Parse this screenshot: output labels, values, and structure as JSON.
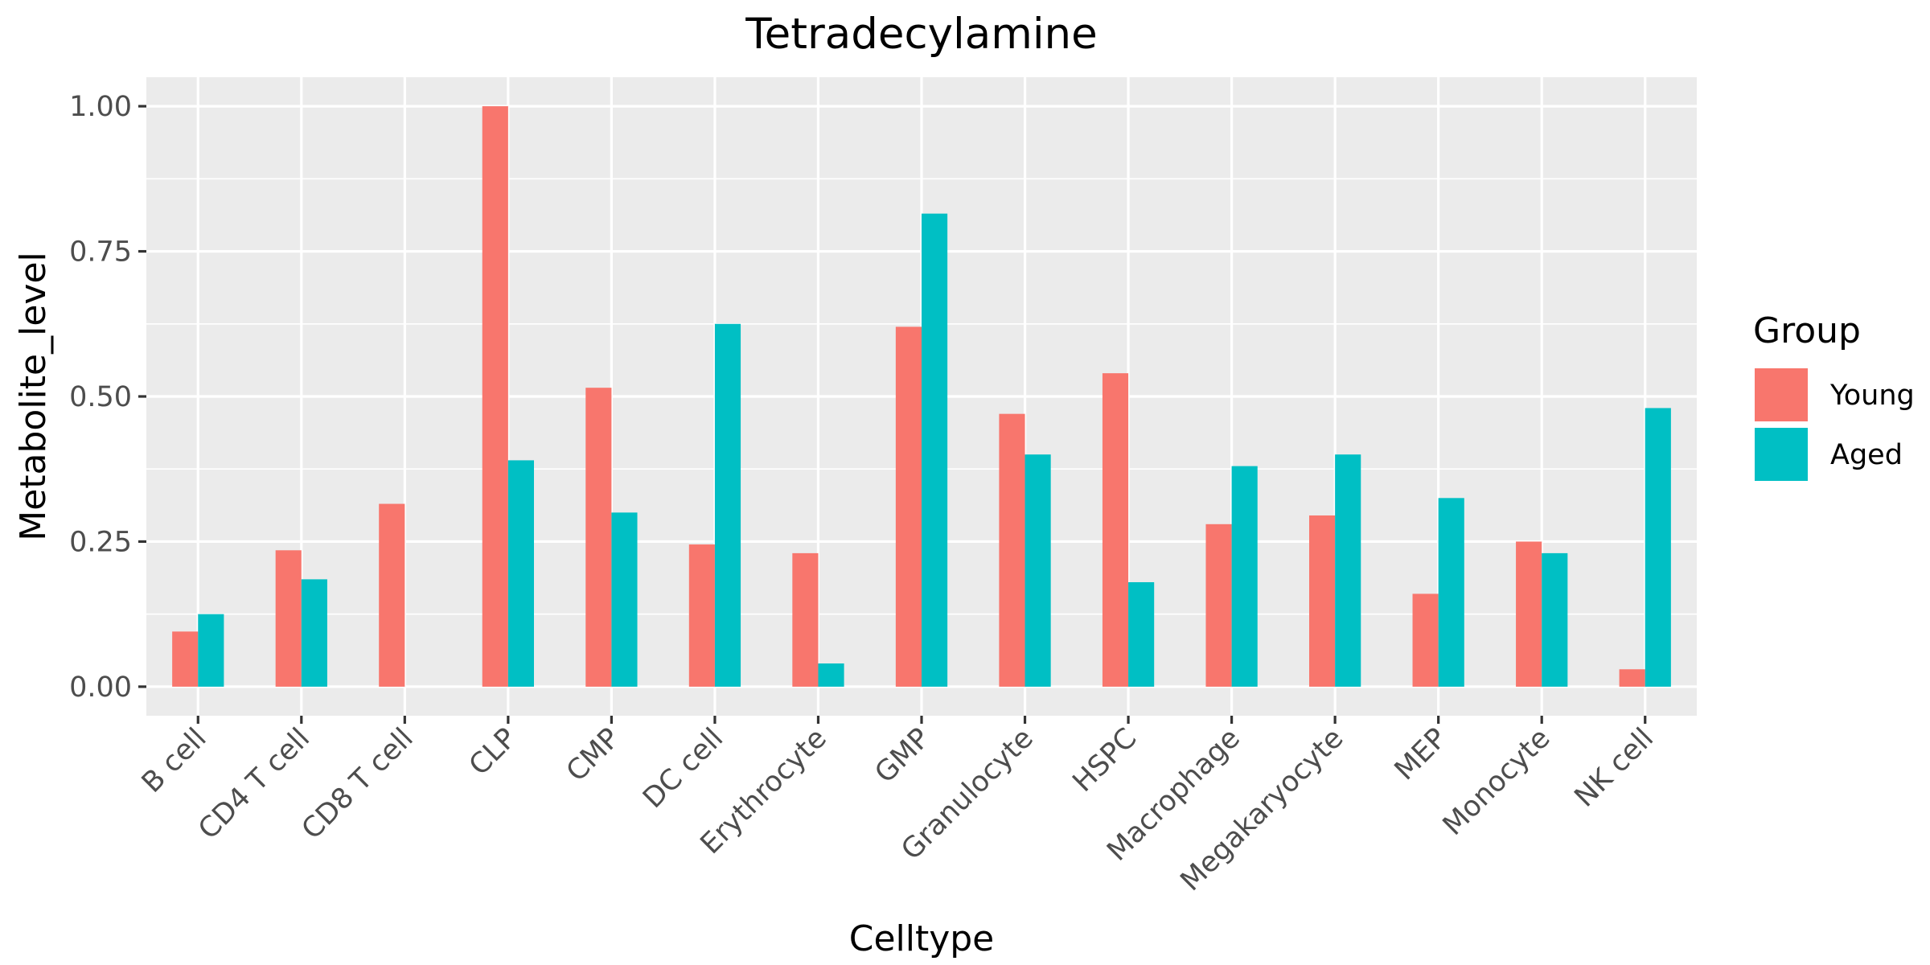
{
  "chart_data": {
    "type": "bar",
    "title": "Tetradecylamine",
    "xlabel": "Celltype",
    "ylabel": "Metabolite_level",
    "ylim": [
      -0.05,
      1.05
    ],
    "yticks": [
      0,
      0.25,
      0.5,
      0.75,
      1.0
    ],
    "ytick_labels": [
      "0.00",
      "0.25",
      "0.50",
      "0.75",
      "1.00"
    ],
    "grid": true,
    "legend": {
      "title": "Group",
      "placement": "right"
    },
    "categories": [
      "B cell",
      "CD4 T cell",
      "CD8 T cell",
      "CLP",
      "CMP",
      "DC cell",
      "Erythrocyte",
      "GMP",
      "Granulocyte",
      "HSPC",
      "Macrophage",
      "Megakaryocyte",
      "MEP",
      "Monocyte",
      "NK cell"
    ],
    "series": [
      {
        "name": "Young",
        "color": "#F8766D",
        "values": [
          0.095,
          0.235,
          0.315,
          1.0,
          0.515,
          0.245,
          0.23,
          0.62,
          0.47,
          0.54,
          0.28,
          0.295,
          0.16,
          0.25,
          0.03
        ]
      },
      {
        "name": "Aged",
        "color": "#00BFC4",
        "values": [
          0.125,
          0.185,
          null,
          0.39,
          0.3,
          0.625,
          0.04,
          0.815,
          0.4,
          0.18,
          0.38,
          0.4,
          0.325,
          0.23,
          0.48
        ]
      }
    ]
  }
}
